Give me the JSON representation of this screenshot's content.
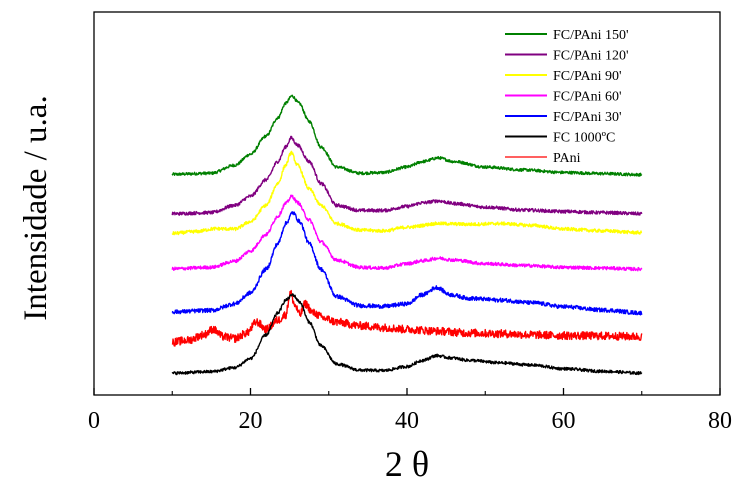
{
  "chart_data": {
    "type": "line",
    "title": "",
    "xlabel": "2 θ",
    "ylabel": "Intensidade / u.a.",
    "xlim": [
      0,
      80
    ],
    "x_ticks": [
      0,
      20,
      40,
      60,
      80
    ],
    "x_tick_labels": [
      "0",
      "20",
      "40",
      "60",
      "80"
    ],
    "y_ticks_shown": false,
    "grid": false,
    "legend_position": "top-right",
    "series": [
      {
        "name": "FC/PAni 150'",
        "color": "#008000",
        "baseline": 0.54,
        "noise": 0.004,
        "x": [
          10,
          15,
          18,
          20,
          22,
          23.5,
          24.5,
          25.3,
          26.2,
          27.5,
          29,
          31,
          34,
          37,
          40,
          42,
          44,
          46,
          50,
          55,
          60,
          65,
          70
        ],
        "y": [
          0.545,
          0.548,
          0.57,
          0.6,
          0.65,
          0.7,
          0.74,
          0.76,
          0.74,
          0.69,
          0.62,
          0.565,
          0.548,
          0.55,
          0.565,
          0.58,
          0.59,
          0.58,
          0.565,
          0.557,
          0.55,
          0.547,
          0.544
        ]
      },
      {
        "name": "FC/PAni 120'",
        "color": "#800080",
        "baseline": 0.43,
        "noise": 0.0045,
        "x": [
          10,
          15,
          18,
          20,
          22,
          23.5,
          24.5,
          25.2,
          26,
          27.5,
          29,
          31,
          34,
          37,
          40,
          42,
          44,
          46,
          50,
          55,
          60,
          65,
          70
        ],
        "y": [
          0.437,
          0.44,
          0.46,
          0.485,
          0.53,
          0.58,
          0.62,
          0.645,
          0.625,
          0.58,
          0.52,
          0.46,
          0.446,
          0.446,
          0.457,
          0.467,
          0.472,
          0.465,
          0.455,
          0.447,
          0.443,
          0.44,
          0.437
        ]
      },
      {
        "name": "FC/PAni 90'",
        "color": "#ffff00",
        "baseline": 0.38,
        "noise": 0.0045,
        "x": [
          10,
          13,
          15.5,
          18,
          20,
          22,
          23.5,
          24.5,
          25.2,
          26,
          27.5,
          29,
          31,
          34,
          37,
          40,
          44,
          48,
          52,
          56,
          60,
          65,
          70
        ],
        "y": [
          0.383,
          0.388,
          0.396,
          0.395,
          0.415,
          0.46,
          0.52,
          0.57,
          0.605,
          0.57,
          0.505,
          0.46,
          0.41,
          0.392,
          0.39,
          0.4,
          0.41,
          0.408,
          0.41,
          0.405,
          0.395,
          0.39,
          0.385
        ]
      },
      {
        "name": "FC/PAni 60'",
        "color": "#ff00ff",
        "baseline": 0.285,
        "noise": 0.0045,
        "x": [
          10,
          15,
          18,
          20,
          22,
          23.5,
          24.5,
          25.3,
          26,
          27.5,
          29,
          31,
          34,
          37,
          40,
          42,
          44,
          46,
          50,
          55,
          60,
          65,
          70
        ],
        "y": [
          0.286,
          0.29,
          0.307,
          0.335,
          0.38,
          0.43,
          0.465,
          0.485,
          0.468,
          0.42,
          0.36,
          0.31,
          0.29,
          0.288,
          0.3,
          0.308,
          0.315,
          0.31,
          0.3,
          0.295,
          0.29,
          0.288,
          0.285
        ]
      },
      {
        "name": "FC/PAni 30'",
        "color": "#0000ff",
        "baseline": 0.165,
        "noise": 0.0055,
        "x": [
          10,
          15,
          18,
          20,
          22,
          23.5,
          24.5,
          25.4,
          26.3,
          27.5,
          29,
          31,
          34,
          37,
          40,
          42,
          43.8,
          45.5,
          48,
          52,
          56,
          60,
          65,
          70
        ],
        "y": [
          0.168,
          0.172,
          0.19,
          0.22,
          0.285,
          0.355,
          0.41,
          0.44,
          0.415,
          0.355,
          0.285,
          0.21,
          0.185,
          0.183,
          0.19,
          0.215,
          0.235,
          0.215,
          0.205,
          0.2,
          0.193,
          0.182,
          0.173,
          0.165
        ]
      },
      {
        "name": "PAni",
        "color": "#ff0000",
        "baseline": 0.09,
        "noise": 0.011,
        "x": [
          10,
          12,
          14,
          15.2,
          16.5,
          18,
          19.5,
          20.8,
          22,
          23.5,
          24.5,
          25.1,
          25.7,
          26.3,
          27,
          28,
          29.5,
          31,
          34,
          37,
          40,
          44,
          48,
          52,
          56,
          60,
          65,
          70
        ],
        "y": [
          0.085,
          0.09,
          0.105,
          0.12,
          0.1,
          0.095,
          0.11,
          0.14,
          0.12,
          0.145,
          0.16,
          0.22,
          0.185,
          0.16,
          0.19,
          0.165,
          0.15,
          0.14,
          0.13,
          0.125,
          0.12,
          0.115,
          0.11,
          0.108,
          0.105,
          0.103,
          0.102,
          0.1
        ]
      },
      {
        "name": "FC 1000ºC",
        "color": "#000000",
        "baseline": 0.0,
        "noise": 0.004,
        "x": [
          10,
          15,
          18,
          20,
          22,
          23.5,
          24.5,
          25.4,
          26.3,
          27.5,
          29,
          31,
          34,
          37,
          40,
          42,
          43.8,
          45.5,
          48,
          52,
          56,
          60,
          65,
          70
        ],
        "y": [
          0.0,
          0.004,
          0.015,
          0.04,
          0.105,
          0.165,
          0.2,
          0.215,
          0.195,
          0.14,
          0.075,
          0.025,
          0.008,
          0.007,
          0.018,
          0.035,
          0.048,
          0.042,
          0.035,
          0.028,
          0.022,
          0.012,
          0.005,
          0.0
        ]
      }
    ],
    "legend_order": [
      "FC/PAni 150'",
      "FC/PAni 120'",
      "FC/PAni 90'",
      "FC/PAni 60'",
      "FC/PAni 30'",
      "FC 1000ºC",
      "PAni"
    ]
  }
}
